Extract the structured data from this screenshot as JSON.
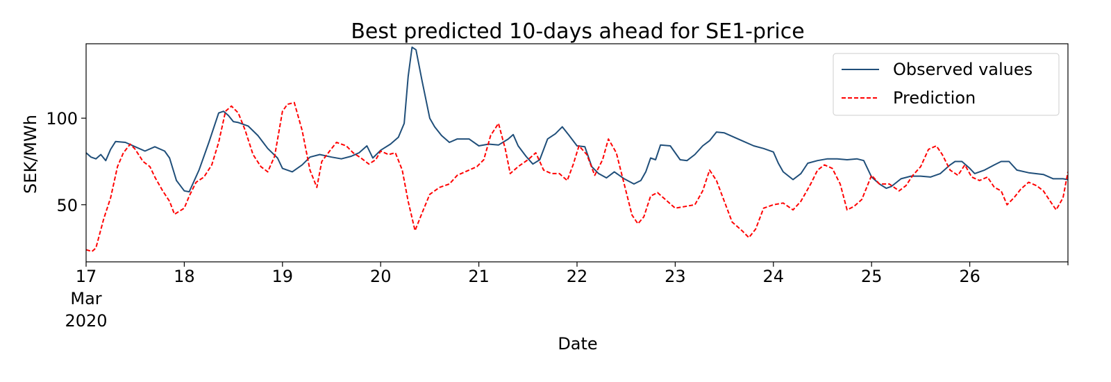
{
  "chart_data": {
    "type": "line",
    "title": "Best predicted 10-days ahead for SE1-price",
    "xlabel": "Date",
    "ylabel": "SEK/MWh",
    "x_ticks": [
      {
        "day": 17,
        "label": "17",
        "sub": [
          "Mar",
          "2020"
        ]
      },
      {
        "day": 18,
        "label": "18"
      },
      {
        "day": 19,
        "label": "19"
      },
      {
        "day": 20,
        "label": "20"
      },
      {
        "day": 21,
        "label": "21"
      },
      {
        "day": 22,
        "label": "22"
      },
      {
        "day": 23,
        "label": "23"
      },
      {
        "day": 24,
        "label": "24"
      },
      {
        "day": 25,
        "label": "25"
      },
      {
        "day": 26,
        "label": "26"
      }
    ],
    "y_ticks": [
      {
        "value": 50,
        "label": "50"
      },
      {
        "value": 100,
        "label": "100"
      }
    ],
    "xlim": [
      17,
      27
    ],
    "ylim": [
      17,
      143
    ],
    "grid": false,
    "legend_position": "top-right",
    "series": [
      {
        "name": "Observed values",
        "color": "#1f4e79",
        "dash": "solid",
        "points": [
          [
            17.0,
            80
          ],
          [
            17.05,
            77.5
          ],
          [
            17.1,
            76.5
          ],
          [
            17.15,
            79
          ],
          [
            17.2,
            75.5
          ],
          [
            17.25,
            82
          ],
          [
            17.3,
            86.5
          ],
          [
            17.4,
            86
          ],
          [
            17.5,
            83.5
          ],
          [
            17.6,
            81
          ],
          [
            17.7,
            83.5
          ],
          [
            17.8,
            81
          ],
          [
            17.85,
            77
          ],
          [
            17.92,
            64
          ],
          [
            18.0,
            58
          ],
          [
            18.05,
            57.5
          ],
          [
            18.15,
            70
          ],
          [
            18.25,
            86
          ],
          [
            18.35,
            103
          ],
          [
            18.4,
            104
          ],
          [
            18.45,
            101.5
          ],
          [
            18.5,
            98
          ],
          [
            18.55,
            97.5
          ],
          [
            18.65,
            95.5
          ],
          [
            18.75,
            90
          ],
          [
            18.85,
            82.5
          ],
          [
            18.95,
            77
          ],
          [
            19.0,
            71
          ],
          [
            19.1,
            69
          ],
          [
            19.2,
            73
          ],
          [
            19.28,
            77.5
          ],
          [
            19.38,
            79
          ],
          [
            19.5,
            77.5
          ],
          [
            19.6,
            76.5
          ],
          [
            19.7,
            78
          ],
          [
            19.78,
            80
          ],
          [
            19.86,
            84
          ],
          [
            19.92,
            77
          ],
          [
            20.0,
            81.5
          ],
          [
            20.1,
            85
          ],
          [
            20.18,
            89
          ],
          [
            20.24,
            97
          ],
          [
            20.28,
            124
          ],
          [
            20.32,
            141
          ],
          [
            20.36,
            139.5
          ],
          [
            20.42,
            122
          ],
          [
            20.5,
            100
          ],
          [
            20.55,
            95
          ],
          [
            20.62,
            90
          ],
          [
            20.7,
            86
          ],
          [
            20.78,
            88
          ],
          [
            20.9,
            88
          ],
          [
            21.0,
            84
          ],
          [
            21.1,
            85
          ],
          [
            21.2,
            84.5
          ],
          [
            21.3,
            88
          ],
          [
            21.35,
            90.5
          ],
          [
            21.4,
            84
          ],
          [
            21.48,
            78
          ],
          [
            21.55,
            73.5
          ],
          [
            21.62,
            76
          ],
          [
            21.7,
            88
          ],
          [
            21.78,
            91
          ],
          [
            21.85,
            95
          ],
          [
            21.92,
            90
          ],
          [
            22.0,
            84
          ],
          [
            22.08,
            83.5
          ],
          [
            22.15,
            72
          ],
          [
            22.22,
            68
          ],
          [
            22.3,
            65.5
          ],
          [
            22.38,
            69
          ],
          [
            22.48,
            65
          ],
          [
            22.58,
            62
          ],
          [
            22.65,
            64
          ],
          [
            22.7,
            69
          ],
          [
            22.75,
            77
          ],
          [
            22.8,
            76
          ],
          [
            22.85,
            84.5
          ],
          [
            22.95,
            84
          ],
          [
            23.05,
            76
          ],
          [
            23.12,
            75.5
          ],
          [
            23.2,
            79
          ],
          [
            23.28,
            84
          ],
          [
            23.35,
            87
          ],
          [
            23.42,
            92
          ],
          [
            23.5,
            91.5
          ],
          [
            23.6,
            89
          ],
          [
            23.7,
            86.5
          ],
          [
            23.8,
            84
          ],
          [
            23.9,
            82.5
          ],
          [
            24.0,
            80.5
          ],
          [
            24.05,
            74
          ],
          [
            24.1,
            69
          ],
          [
            24.2,
            64.5
          ],
          [
            24.28,
            68
          ],
          [
            24.35,
            74
          ],
          [
            24.45,
            75.5
          ],
          [
            24.55,
            76.5
          ],
          [
            24.65,
            76.5
          ],
          [
            24.75,
            76
          ],
          [
            24.85,
            76.5
          ],
          [
            24.92,
            75.5
          ],
          [
            25.0,
            66
          ],
          [
            25.08,
            62
          ],
          [
            25.15,
            59.5
          ],
          [
            25.2,
            60.5
          ],
          [
            25.3,
            65
          ],
          [
            25.4,
            66.5
          ],
          [
            25.5,
            66.5
          ],
          [
            25.6,
            66
          ],
          [
            25.7,
            68
          ],
          [
            25.8,
            73
          ],
          [
            25.85,
            75
          ],
          [
            25.92,
            75
          ],
          [
            26.0,
            71
          ],
          [
            26.05,
            68
          ],
          [
            26.15,
            70
          ],
          [
            26.25,
            73
          ],
          [
            26.32,
            75
          ],
          [
            26.4,
            75
          ],
          [
            26.48,
            70
          ],
          [
            26.6,
            68.5
          ],
          [
            26.75,
            67.5
          ],
          [
            26.85,
            65
          ],
          [
            26.95,
            65
          ],
          [
            27.0,
            64.5
          ]
        ]
      },
      {
        "name": "Prediction",
        "color": "#ff0000",
        "dash": "dashed",
        "points": [
          [
            17.0,
            24
          ],
          [
            17.06,
            23
          ],
          [
            17.1,
            25
          ],
          [
            17.18,
            42
          ],
          [
            17.25,
            54
          ],
          [
            17.32,
            72
          ],
          [
            17.38,
            80
          ],
          [
            17.45,
            85
          ],
          [
            17.5,
            82
          ],
          [
            17.58,
            75
          ],
          [
            17.65,
            72
          ],
          [
            17.7,
            66
          ],
          [
            17.78,
            58
          ],
          [
            17.85,
            52
          ],
          [
            17.9,
            44.5
          ],
          [
            18.0,
            48
          ],
          [
            18.05,
            55
          ],
          [
            18.12,
            63
          ],
          [
            18.2,
            66
          ],
          [
            18.28,
            73
          ],
          [
            18.35,
            86
          ],
          [
            18.42,
            104
          ],
          [
            18.48,
            107
          ],
          [
            18.55,
            103
          ],
          [
            18.62,
            93
          ],
          [
            18.7,
            79
          ],
          [
            18.78,
            72
          ],
          [
            18.85,
            69
          ],
          [
            18.92,
            78
          ],
          [
            19.0,
            104
          ],
          [
            19.05,
            108
          ],
          [
            19.12,
            109
          ],
          [
            19.2,
            93
          ],
          [
            19.28,
            70
          ],
          [
            19.35,
            60
          ],
          [
            19.4,
            75
          ],
          [
            19.48,
            81
          ],
          [
            19.55,
            86
          ],
          [
            19.65,
            84
          ],
          [
            19.72,
            80
          ],
          [
            19.8,
            77
          ],
          [
            19.88,
            73.5
          ],
          [
            19.95,
            76
          ],
          [
            20.0,
            81
          ],
          [
            20.08,
            79
          ],
          [
            20.15,
            80
          ],
          [
            20.22,
            70
          ],
          [
            20.28,
            52
          ],
          [
            20.35,
            35
          ],
          [
            20.42,
            45
          ],
          [
            20.5,
            56
          ],
          [
            20.6,
            60
          ],
          [
            20.7,
            62
          ],
          [
            20.78,
            67
          ],
          [
            20.88,
            69.5
          ],
          [
            20.98,
            72
          ],
          [
            21.05,
            76
          ],
          [
            21.12,
            90
          ],
          [
            21.2,
            97
          ],
          [
            21.27,
            82
          ],
          [
            21.32,
            68
          ],
          [
            21.4,
            72
          ],
          [
            21.5,
            76
          ],
          [
            21.58,
            80
          ],
          [
            21.66,
            70
          ],
          [
            21.74,
            68
          ],
          [
            21.82,
            68
          ],
          [
            21.9,
            64
          ],
          [
            21.96,
            73
          ],
          [
            22.02,
            84
          ],
          [
            22.1,
            79
          ],
          [
            22.18,
            67
          ],
          [
            22.26,
            76
          ],
          [
            22.32,
            88
          ],
          [
            22.4,
            80
          ],
          [
            22.48,
            62
          ],
          [
            22.56,
            44
          ],
          [
            22.62,
            39
          ],
          [
            22.68,
            43
          ],
          [
            22.75,
            55
          ],
          [
            22.82,
            57
          ],
          [
            22.9,
            53
          ],
          [
            23.0,
            48
          ],
          [
            23.1,
            49
          ],
          [
            23.2,
            50
          ],
          [
            23.28,
            58
          ],
          [
            23.35,
            70
          ],
          [
            23.42,
            64
          ],
          [
            23.5,
            52
          ],
          [
            23.58,
            40
          ],
          [
            23.68,
            35
          ],
          [
            23.75,
            31
          ],
          [
            23.82,
            36
          ],
          [
            23.9,
            48
          ],
          [
            24.0,
            50
          ],
          [
            24.1,
            51
          ],
          [
            24.2,
            47
          ],
          [
            24.28,
            52
          ],
          [
            24.38,
            62
          ],
          [
            24.45,
            70
          ],
          [
            24.52,
            73
          ],
          [
            24.6,
            71
          ],
          [
            24.68,
            62
          ],
          [
            24.75,
            47
          ],
          [
            24.82,
            49
          ],
          [
            24.9,
            53
          ],
          [
            25.0,
            67
          ],
          [
            25.08,
            62
          ],
          [
            25.18,
            62
          ],
          [
            25.28,
            58
          ],
          [
            25.35,
            61
          ],
          [
            25.42,
            67
          ],
          [
            25.5,
            72
          ],
          [
            25.58,
            82
          ],
          [
            25.66,
            84
          ],
          [
            25.72,
            79
          ],
          [
            25.8,
            70
          ],
          [
            25.88,
            67
          ],
          [
            25.95,
            73
          ],
          [
            26.02,
            66
          ],
          [
            26.1,
            64
          ],
          [
            26.18,
            66
          ],
          [
            26.25,
            60
          ],
          [
            26.32,
            58
          ],
          [
            26.38,
            50
          ],
          [
            26.45,
            54
          ],
          [
            26.52,
            59
          ],
          [
            26.6,
            63
          ],
          [
            26.68,
            61
          ],
          [
            26.75,
            58
          ],
          [
            26.82,
            52
          ],
          [
            26.88,
            47
          ],
          [
            26.95,
            54
          ],
          [
            27.0,
            69
          ]
        ]
      }
    ]
  }
}
